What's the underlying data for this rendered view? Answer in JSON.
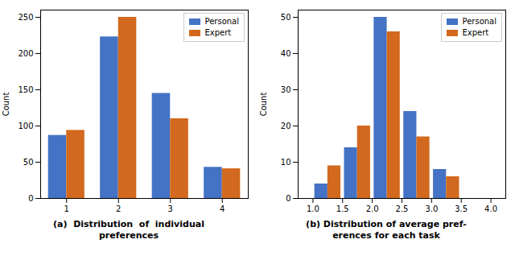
{
  "chart_data": [
    {
      "type": "bar",
      "x": [
        1,
        2,
        3,
        4
      ],
      "series": [
        {
          "name": "Personal",
          "color": "#4472C4",
          "values": [
            87,
            223,
            145,
            43
          ]
        },
        {
          "name": "Expert",
          "color": "#D2691E",
          "values": [
            94,
            250,
            110,
            41
          ]
        }
      ],
      "ylabel": "Count",
      "xlim": [
        0.5,
        4.5
      ],
      "xticks": [
        1,
        2,
        3,
        4
      ],
      "ylim": [
        0,
        260
      ],
      "yticks": [
        0,
        50,
        100,
        150,
        200,
        250
      ],
      "legend": "upper right",
      "caption": [
        "(a)  Distribution  of  individual",
        "preferences"
      ]
    },
    {
      "type": "bar",
      "bins": [
        1.0,
        1.5,
        2.0,
        2.5,
        3.0,
        3.5
      ],
      "series": [
        {
          "name": "Personal",
          "color": "#4472C4",
          "values": [
            4,
            14,
            50,
            24,
            8
          ]
        },
        {
          "name": "Expert",
          "color": "#D2691E",
          "values": [
            9,
            20,
            46,
            17,
            6
          ]
        }
      ],
      "ylabel": "Count",
      "xlim": [
        0.75,
        4.25
      ],
      "xticks": [
        {
          "value": 1.0,
          "label": "1.0"
        },
        {
          "value": 1.5,
          "label": "1.5"
        },
        {
          "value": 2.0,
          "label": "2.0"
        },
        {
          "value": 2.5,
          "label": "2.5"
        },
        {
          "value": 3.0,
          "label": "3.0"
        },
        {
          "value": 3.5,
          "label": "3.5"
        },
        {
          "value": 4.0,
          "label": "4.0"
        }
      ],
      "ylim": [
        0,
        52
      ],
      "yticks": [
        0,
        10,
        20,
        30,
        40,
        50
      ],
      "legend": "upper right",
      "caption": [
        "(b) Distribution of average pref-",
        "erences for each task"
      ]
    }
  ]
}
